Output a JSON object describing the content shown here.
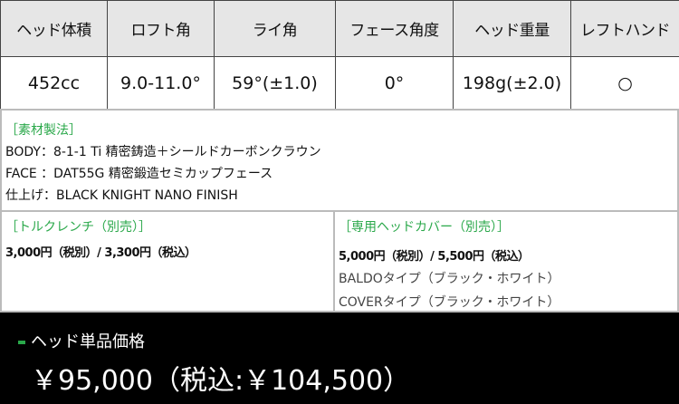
{
  "spec": {
    "headers": [
      "ヘッド体積",
      "ロフト角",
      "ライ角",
      "フェース角度",
      "ヘッド重量",
      "レフトハンド"
    ],
    "values": [
      "452cc",
      "9.0-11.0°",
      "59°(±1.0)",
      "0°",
      "198g(±2.0)",
      "○"
    ]
  },
  "material": {
    "title": "［素材製法］",
    "lines": [
      "BODY：8-1-1 Ti 精密鋳造＋シールドカーボンクラウン",
      "FACE ：DAT55G 精密鍛造セミカップフェース",
      "仕上げ：BLACK KNIGHT NANO FINISH"
    ]
  },
  "wrench": {
    "title": "［トルクレンチ（別売）］",
    "price": "3,000円（税別）/ 3,300円（税込）"
  },
  "cover": {
    "title": "［専用ヘッドカバー（別売）］",
    "price": "5,000円（税別）/ 5,500円（税込）",
    "types": [
      "BALDOタイプ（ブラック・ホワイト）",
      "COVERタイプ（ブラック・ホワイト）"
    ]
  },
  "head_price": {
    "label": "ヘッド単品価格",
    "value": "￥95,000（税込:￥104,500）"
  },
  "colors": {
    "accent": "#2aa84a",
    "header_bg": "#e6e6e6",
    "price_bg": "#000000"
  }
}
